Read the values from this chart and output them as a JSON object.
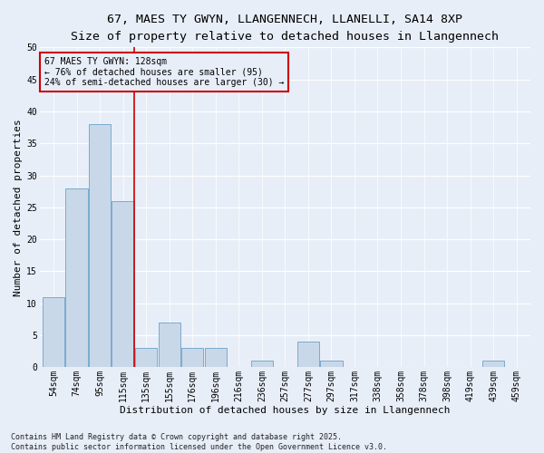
{
  "title1": "67, MAES TY GWYN, LLANGENNECH, LLANELLI, SA14 8XP",
  "title2": "Size of property relative to detached houses in Llangennech",
  "xlabel": "Distribution of detached houses by size in Llangennech",
  "ylabel": "Number of detached properties",
  "categories": [
    "54sqm",
    "74sqm",
    "95sqm",
    "115sqm",
    "135sqm",
    "155sqm",
    "176sqm",
    "196sqm",
    "216sqm",
    "236sqm",
    "257sqm",
    "277sqm",
    "297sqm",
    "317sqm",
    "338sqm",
    "358sqm",
    "378sqm",
    "398sqm",
    "419sqm",
    "439sqm",
    "459sqm"
  ],
  "values": [
    11,
    28,
    38,
    26,
    3,
    7,
    3,
    3,
    0,
    1,
    0,
    4,
    1,
    0,
    0,
    0,
    0,
    0,
    0,
    1,
    0
  ],
  "bar_color": "#c8d8e8",
  "bar_edge_color": "#7aabcf",
  "background_color": "#e8eef8",
  "grid_color": "#ffffff",
  "vline_color": "#cc0000",
  "annotation_text": "67 MAES TY GWYN: 128sqm\n← 76% of detached houses are smaller (95)\n24% of semi-detached houses are larger (30) →",
  "annotation_box_color": "#cc0000",
  "ylim": [
    0,
    50
  ],
  "yticks": [
    0,
    5,
    10,
    15,
    20,
    25,
    30,
    35,
    40,
    45,
    50
  ],
  "footnote": "Contains HM Land Registry data © Crown copyright and database right 2025.\nContains public sector information licensed under the Open Government Licence v3.0.",
  "title_fontsize": 9.5,
  "subtitle_fontsize": 8.5,
  "tick_fontsize": 7,
  "label_fontsize": 8,
  "annot_fontsize": 7
}
